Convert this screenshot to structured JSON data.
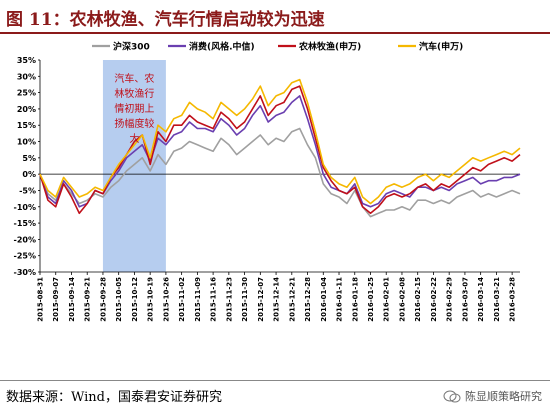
{
  "title": "图 11：农林牧渔、汽车行情启动较为迅速",
  "source": "数据来源：Wind，国泰君安证券研究",
  "watermark": "陈显顺策略研究",
  "watermark_icon": "wechat-icon",
  "colors": {
    "title": "#8b1a1a",
    "hs300": "#a0a0a0",
    "consumer": "#6a3fb0",
    "agri": "#c0101a",
    "auto": "#f5b800",
    "highlight": "#a9c4ec"
  },
  "chart_data": {
    "type": "line",
    "title": "",
    "xlabel": "",
    "ylabel": "",
    "ylim": [
      -30,
      35
    ],
    "yticks": [
      -30,
      -25,
      -20,
      -15,
      -10,
      -5,
      0,
      5,
      10,
      15,
      20,
      25,
      30,
      35
    ],
    "ytick_labels": [
      "-30%",
      "-25%",
      "-20%",
      "-15%",
      "-10%",
      "-5%",
      "0%",
      "5%",
      "10%",
      "15%",
      "20%",
      "25%",
      "30%",
      "35%"
    ],
    "grid": false,
    "legend_position": "top",
    "x_tick_labels": [
      "2015-08-31",
      "2015-09-07",
      "2015-09-14",
      "2015-09-21",
      "2015-09-28",
      "2015-10-05",
      "2015-10-12",
      "2015-10-19",
      "2015-10-26",
      "2015-11-02",
      "2015-11-09",
      "2015-11-16",
      "2015-11-23",
      "2015-11-30",
      "2015-12-07",
      "2015-12-14",
      "2015-12-21",
      "2015-12-28",
      "2016-01-04",
      "2016-01-11",
      "2016-01-18",
      "2016-01-25",
      "2016-02-01",
      "2016-02-08",
      "2016-02-15",
      "2016-02-22",
      "2016-02-29",
      "2016-03-07",
      "2016-03-14",
      "2016-03-21",
      "2016-03-28"
    ],
    "highlight_region": {
      "x_start": 4,
      "x_end": 8,
      "label": "汽车、农林牧渔行情初期上扬幅度较大"
    },
    "x": [
      0,
      0.5,
      1,
      1.5,
      2,
      2.5,
      3,
      3.5,
      4,
      4.5,
      5,
      5.5,
      6,
      6.5,
      7,
      7.5,
      8,
      8.5,
      9,
      9.5,
      10,
      10.5,
      11,
      11.5,
      12,
      12.5,
      13,
      13.5,
      14,
      14.5,
      15,
      15.5,
      16,
      16.5,
      17,
      17.5,
      18,
      18.5,
      19,
      19.5,
      20,
      20.5,
      21,
      21.5,
      22,
      22.5,
      23,
      23.5,
      24,
      24.5,
      25,
      25.5,
      26,
      26.5,
      27,
      27.5,
      28,
      28.5,
      29,
      29.5,
      30,
      30.5
    ],
    "series": [
      {
        "name": "沪深300",
        "color_key": "hs300",
        "values": [
          0,
          -6,
          -8,
          -3,
          -6,
          -9,
          -8,
          -6,
          -7,
          -4,
          -2,
          1,
          3,
          5,
          1,
          6,
          3,
          7,
          8,
          10,
          9,
          8,
          7,
          11,
          9,
          6,
          8,
          10,
          12,
          9,
          11,
          10,
          13,
          14,
          9,
          5,
          -3,
          -6,
          -7,
          -9,
          -5,
          -10,
          -13,
          -12,
          -11,
          -11,
          -10,
          -11,
          -8,
          -8,
          -9,
          -8,
          -9,
          -7,
          -6,
          -5,
          -7,
          -6,
          -7,
          -6,
          -5,
          -6
        ]
      },
      {
        "name": "消费(风格.中信)",
        "color_key": "consumer",
        "values": [
          0,
          -7,
          -9,
          -2,
          -5,
          -10,
          -9,
          -5,
          -6,
          -2,
          1,
          5,
          7,
          9,
          4,
          11,
          9,
          12,
          13,
          16,
          14,
          14,
          13,
          17,
          15,
          12,
          14,
          18,
          21,
          16,
          18,
          19,
          22,
          24,
          17,
          9,
          0,
          -4,
          -5,
          -6,
          -3,
          -9,
          -10,
          -9,
          -6,
          -5,
          -6,
          -7,
          -4,
          -4,
          -5,
          -4,
          -5,
          -3,
          -2,
          -1,
          -3,
          -2,
          -2,
          -1,
          -1,
          0
        ]
      },
      {
        "name": "农林牧渔(申万)",
        "color_key": "agri",
        "values": [
          0,
          -8,
          -10,
          -3,
          -7,
          -12,
          -9,
          -5,
          -6,
          -1,
          2,
          6,
          10,
          12,
          3,
          13,
          10,
          15,
          15,
          18,
          16,
          15,
          14,
          19,
          17,
          14,
          16,
          20,
          24,
          18,
          21,
          22,
          26,
          27,
          20,
          11,
          2,
          -2,
          -5,
          -6,
          -4,
          -10,
          -12,
          -10,
          -7,
          -6,
          -7,
          -6,
          -4,
          -3,
          -5,
          -3,
          -4,
          -2,
          0,
          2,
          1,
          3,
          4,
          5,
          4,
          6
        ]
      },
      {
        "name": "汽车(申万)",
        "color_key": "auto",
        "values": [
          0,
          -5,
          -7,
          -1,
          -4,
          -7,
          -6,
          -4,
          -5,
          -1,
          3,
          6,
          9,
          12,
          5,
          15,
          13,
          17,
          18,
          22,
          20,
          19,
          17,
          22,
          20,
          18,
          20,
          23,
          27,
          21,
          24,
          25,
          28,
          29,
          22,
          13,
          3,
          -1,
          -3,
          -4,
          -1,
          -7,
          -9,
          -7,
          -4,
          -3,
          -4,
          -3,
          -1,
          0,
          -2,
          0,
          -1,
          1,
          3,
          5,
          4,
          5,
          6,
          7,
          6,
          8
        ]
      }
    ]
  }
}
